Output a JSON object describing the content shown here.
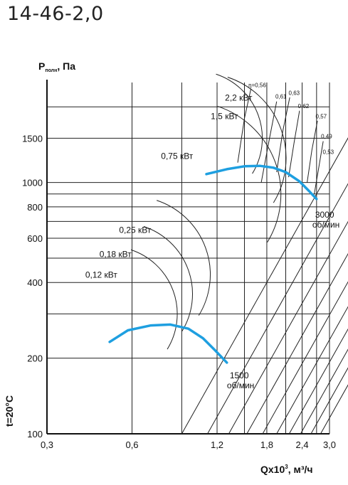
{
  "title": "14-46-2,0",
  "chart_data": {
    "type": "line",
    "xlabel_main": "Qx10",
    "xlabel_sup": "3",
    "xlabel_unit": ", м³/ч",
    "ylabel_main": "P",
    "ylabel_sub": "полн",
    "ylabel_unit": ", Па",
    "x_scale": "log",
    "y_scale": "log",
    "xlim": [
      0.3,
      3.0
    ],
    "ylim": [
      100,
      2500
    ],
    "x_ticks": [
      {
        "value": 0.3,
        "label": "0,3"
      },
      {
        "value": 0.6,
        "label": "0,6"
      },
      {
        "value": 1.2,
        "label": "1,2"
      },
      {
        "value": 1.8,
        "label": "1,8"
      },
      {
        "value": 2.4,
        "label": "2,4"
      },
      {
        "value": 3.0,
        "label": "3,0"
      }
    ],
    "y_ticks": [
      {
        "value": 100,
        "label": "100"
      },
      {
        "value": 200,
        "label": "200"
      },
      {
        "value": 400,
        "label": "400"
      },
      {
        "value": 600,
        "label": "600"
      },
      {
        "value": 800,
        "label": "800"
      },
      {
        "value": 1000,
        "label": "1000"
      },
      {
        "value": 1500,
        "label": "1500"
      }
    ],
    "x_grid": [
      0.3,
      0.6,
      0.9,
      1.2,
      1.5,
      1.8,
      2.1,
      2.4,
      2.7,
      3.0
    ],
    "y_grid": [
      100,
      200,
      300,
      400,
      500,
      600,
      700,
      800,
      900,
      1000,
      1500,
      2000
    ],
    "grid": true,
    "temperature_label": "t=20°C",
    "series": [
      {
        "speed_label": [
          "1500",
          "об/мин"
        ],
        "color": "#1e9fe0",
        "points": [
          [
            0.5,
            232
          ],
          [
            0.58,
            258
          ],
          [
            0.7,
            270
          ],
          [
            0.82,
            272
          ],
          [
            0.95,
            262
          ],
          [
            1.07,
            240
          ],
          [
            1.18,
            215
          ],
          [
            1.3,
            192
          ]
        ]
      },
      {
        "speed_label": [
          "3000",
          "об/мин"
        ],
        "color": "#1e9fe0",
        "points": [
          [
            1.1,
            1080
          ],
          [
            1.3,
            1130
          ],
          [
            1.5,
            1160
          ],
          [
            1.7,
            1165
          ],
          [
            1.9,
            1145
          ],
          [
            2.1,
            1100
          ],
          [
            2.35,
            1010
          ],
          [
            2.55,
            920
          ],
          [
            2.7,
            860
          ]
        ]
      }
    ],
    "power_labels": [
      {
        "label": "2,2 кВт",
        "x": 1.28,
        "y": 2120
      },
      {
        "label": "1,5 кВт",
        "x": 1.14,
        "y": 1790
      },
      {
        "label": "0,75 кВт",
        "x": 0.76,
        "y": 1240
      },
      {
        "label": "0,25 кВт",
        "x": 0.54,
        "y": 630
      },
      {
        "label": "0,18 кВт",
        "x": 0.46,
        "y": 505
      },
      {
        "label": "0,12 кВт",
        "x": 0.41,
        "y": 418
      }
    ],
    "efficiency_labels": [
      {
        "label": "η=0,56",
        "x": 1.55,
        "y": 2400
      },
      {
        "label": "0,61",
        "x": 1.93,
        "y": 2160
      },
      {
        "label": "0,63",
        "x": 2.15,
        "y": 2230
      },
      {
        "label": "0,62",
        "x": 2.32,
        "y": 1980
      },
      {
        "label": "0,57",
        "x": 2.68,
        "y": 1800
      },
      {
        "label": "0,49",
        "x": 2.8,
        "y": 1500
      },
      {
        "label": "0,53",
        "x": 2.84,
        "y": 1300
      }
    ]
  }
}
